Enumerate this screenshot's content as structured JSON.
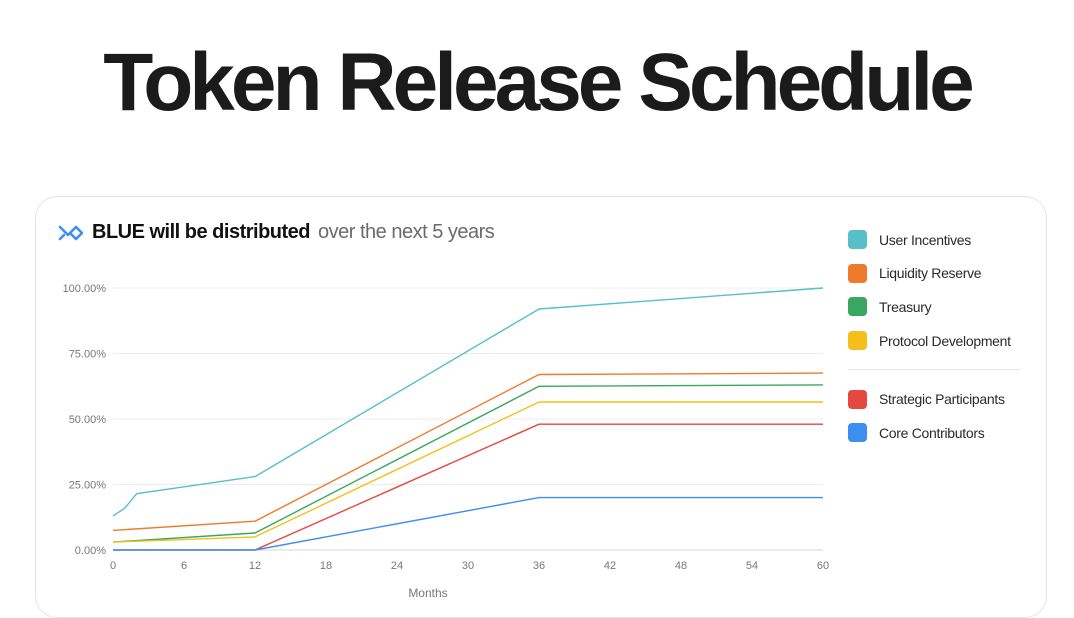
{
  "page": {
    "title": "Token Release Schedule"
  },
  "card": {
    "heading_strong": "BLUE will be distributed",
    "heading_muted": "over the next 5 years"
  },
  "legend": {
    "group1": [
      {
        "label": "User Incentives",
        "color": "#56bfc9"
      },
      {
        "label": "Liquidity Reserve",
        "color": "#f07a2b"
      },
      {
        "label": "Treasury",
        "color": "#3aa760"
      },
      {
        "label": "Protocol Development",
        "color": "#f5bf1a"
      }
    ],
    "group2": [
      {
        "label": "Strategic Participants",
        "color": "#e5483f"
      },
      {
        "label": "Core Contributors",
        "color": "#3e8ef0"
      }
    ]
  },
  "chart_data": {
    "type": "line",
    "xlabel": "Months",
    "ylabel": "",
    "xlim": [
      0,
      60
    ],
    "ylim": [
      0,
      100
    ],
    "x_ticks": [
      0,
      6,
      12,
      18,
      24,
      30,
      36,
      42,
      48,
      54,
      60
    ],
    "y_ticks": [
      "0.00%",
      "25.00%",
      "50.00%",
      "75.00%",
      "100.00%"
    ],
    "grid": "horizontal",
    "legend_position": "right",
    "series": [
      {
        "name": "User Incentives",
        "color": "#56bfc9",
        "points": [
          [
            0,
            13
          ],
          [
            1,
            16
          ],
          [
            2,
            21.5
          ],
          [
            12,
            28
          ],
          [
            36,
            92
          ],
          [
            60,
            100
          ]
        ]
      },
      {
        "name": "Liquidity Reserve",
        "color": "#f07a2b",
        "points": [
          [
            0,
            7.5
          ],
          [
            12,
            11
          ],
          [
            36,
            67
          ],
          [
            60,
            67.5
          ]
        ]
      },
      {
        "name": "Treasury",
        "color": "#3aa760",
        "points": [
          [
            0,
            3
          ],
          [
            12,
            6.5
          ],
          [
            36,
            62.5
          ],
          [
            60,
            63
          ]
        ]
      },
      {
        "name": "Protocol Development",
        "color": "#f5bf1a",
        "points": [
          [
            0,
            3
          ],
          [
            12,
            5
          ],
          [
            36,
            56.5
          ],
          [
            60,
            56.5
          ]
        ]
      },
      {
        "name": "Strategic Participants",
        "color": "#e5483f",
        "points": [
          [
            0,
            0
          ],
          [
            12,
            0
          ],
          [
            36,
            48
          ],
          [
            60,
            48
          ]
        ]
      },
      {
        "name": "Core Contributors",
        "color": "#3e8ef0",
        "points": [
          [
            0,
            0
          ],
          [
            12,
            0
          ],
          [
            36,
            20
          ],
          [
            60,
            20
          ]
        ]
      }
    ]
  }
}
